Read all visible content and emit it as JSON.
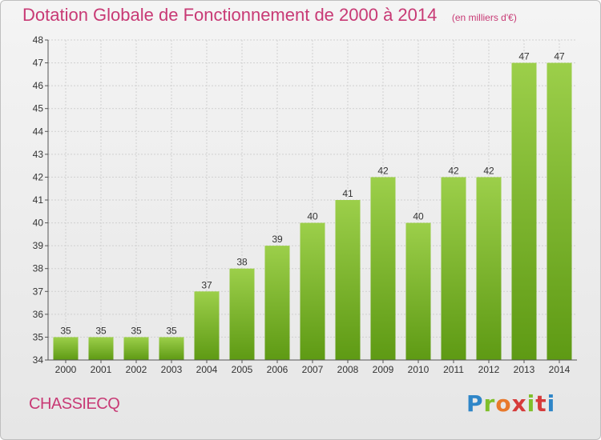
{
  "chart_data": {
    "type": "bar",
    "title": "Dotation Globale de Fonctionnement de 2000 à 2014",
    "subtitle": "(en milliers d'€)",
    "categories": [
      "2000",
      "2001",
      "2002",
      "2003",
      "2004",
      "2005",
      "2006",
      "2007",
      "2008",
      "2009",
      "2010",
      "2011",
      "2012",
      "2013",
      "2014"
    ],
    "values": [
      35,
      35,
      35,
      35,
      37,
      38,
      39,
      40,
      41,
      42,
      40,
      42,
      42,
      47,
      47
    ],
    "ylim": [
      34,
      48
    ],
    "yticks": [
      34,
      35,
      36,
      37,
      38,
      39,
      40,
      41,
      42,
      43,
      44,
      45,
      46,
      47,
      48
    ],
    "grid": true,
    "bar_color_top": "#9ccf4a",
    "bar_color_bottom": "#5e9a14"
  },
  "commune": "CHASSIECQ",
  "logo_text": "Proxiti",
  "colors": {
    "accent": "#c83a75",
    "axis": "#555555",
    "grid": "#d0d0d0"
  }
}
